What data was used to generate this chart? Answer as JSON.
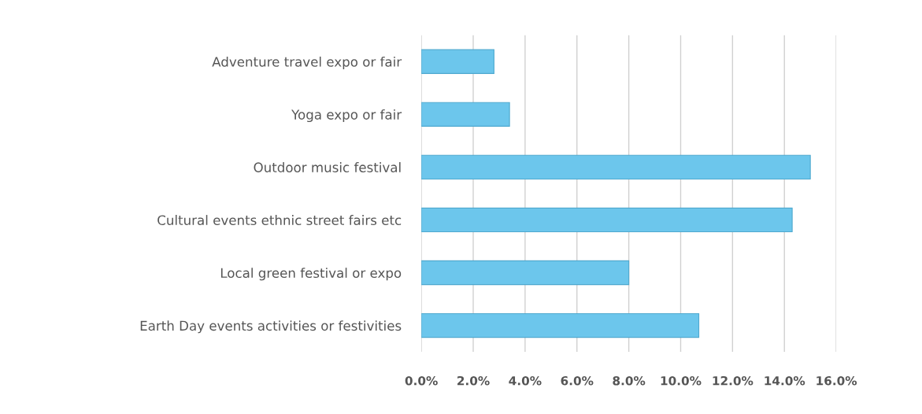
{
  "chart_data": {
    "type": "bar",
    "orientation": "horizontal",
    "categories": [
      "Adventure travel expo or fair",
      "Yoga expo or fair",
      "Outdoor music festival",
      "Cultural events ethnic street fairs etc",
      "Local green festival or expo",
      "Earth Day events activities or festivities"
    ],
    "values": [
      2.8,
      3.4,
      15.0,
      14.3,
      8.0,
      10.7
    ],
    "color": "#6cc6ec",
    "xlim": [
      0,
      16
    ],
    "xticks": [
      {
        "value": 0,
        "label": "0.0%"
      },
      {
        "value": 2,
        "label": "2.0%"
      },
      {
        "value": 4,
        "label": "4.0%"
      },
      {
        "value": 6,
        "label": "6.0%"
      },
      {
        "value": 8,
        "label": "8.0%"
      },
      {
        "value": 10,
        "label": "10.0%"
      },
      {
        "value": 12,
        "label": "12.0%"
      },
      {
        "value": 14,
        "label": "14.0%"
      },
      {
        "value": 16,
        "label": "16.0%"
      }
    ],
    "grid": "x"
  }
}
